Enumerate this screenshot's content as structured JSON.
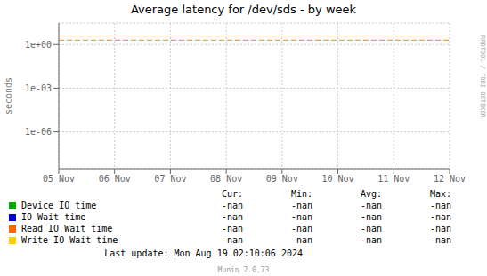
{
  "chart_data": {
    "type": "line",
    "title": "Average latency for /dev/sds - by week",
    "ylabel": "seconds",
    "categories": [
      "05 Nov",
      "06 Nov",
      "07 Nov",
      "08 Nov",
      "09 Nov",
      "10 Nov",
      "11 Nov",
      "12 Nov"
    ],
    "series": [
      {
        "name": "Device IO time",
        "color": "#00aa00",
        "values": [
          null,
          null,
          null,
          null,
          null,
          null,
          null,
          null
        ]
      },
      {
        "name": "IO Wait time",
        "color": "#0000cc",
        "values": [
          null,
          null,
          null,
          null,
          null,
          null,
          null,
          null
        ]
      },
      {
        "name": "Read IO Wait time",
        "color": "#ff6600",
        "values": [
          null,
          null,
          null,
          null,
          null,
          null,
          null,
          null
        ]
      },
      {
        "name": "Write IO Wait time",
        "color": "#ffcc00",
        "values": [
          null,
          null,
          null,
          null,
          null,
          null,
          null,
          null
        ]
      }
    ],
    "log": "y",
    "ylim": [
      3e-09,
      30
    ],
    "yticks": [
      {
        "value": 1e-06,
        "label": "1e-06"
      },
      {
        "value": 0.001,
        "label": "1e-03"
      },
      {
        "value": 1,
        "label": "1e+00"
      }
    ],
    "grid": true,
    "reference_line": {
      "value": 2.0,
      "color": "#ff8800",
      "line_style": "dashed"
    },
    "table": {
      "columns": [
        "Cur:",
        "Min:",
        "Avg:",
        "Max:"
      ],
      "rows": [
        [
          "-nan",
          "-nan",
          "-nan",
          "-nan"
        ],
        [
          "-nan",
          "-nan",
          "-nan",
          "-nan"
        ],
        [
          "-nan",
          "-nan",
          "-nan",
          "-nan"
        ],
        [
          "-nan",
          "-nan",
          "-nan",
          "-nan"
        ]
      ]
    },
    "annotations": [
      "Last update: Mon Aug 19 02:10:06 2024",
      "Munin 2.0.73",
      "RRDTOOL / TOBI OETIKER"
    ]
  }
}
